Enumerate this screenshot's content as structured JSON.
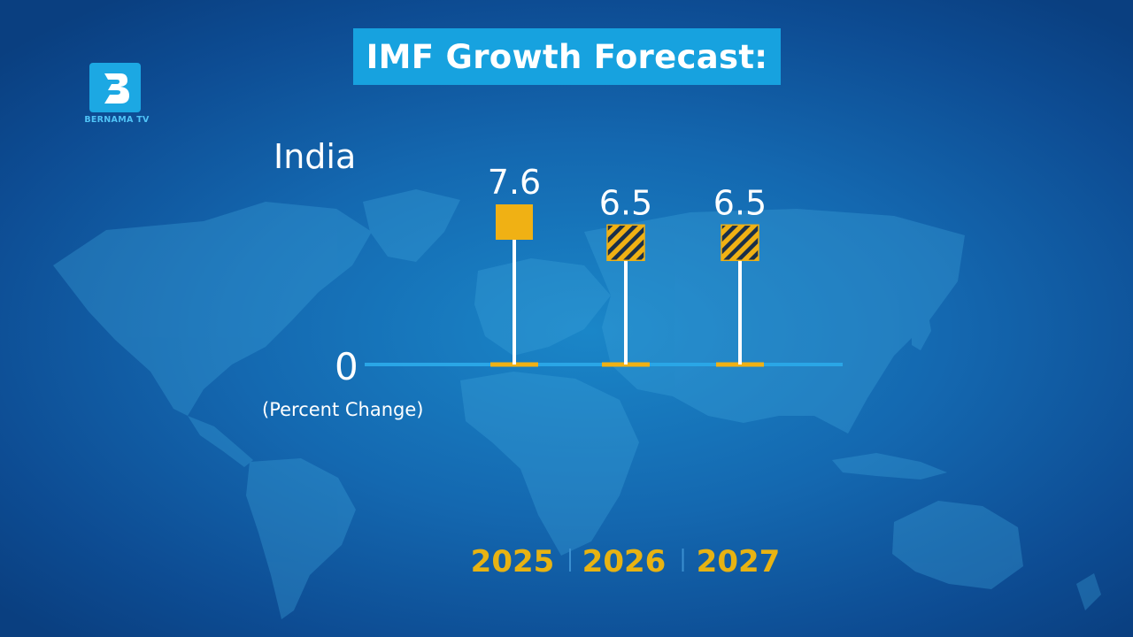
{
  "channel": {
    "logo_text": "BERNAMA TV"
  },
  "header": {
    "title": "IMF Growth Forecast:"
  },
  "chart_data": {
    "type": "bar",
    "title": "IMF Growth Forecast:",
    "country": "India",
    "categories": [
      "2025",
      "2026",
      "2027"
    ],
    "values": [
      7.6,
      6.5,
      6.5
    ],
    "value_labels": [
      "7.6",
      "6.5",
      "6.5"
    ],
    "projected": [
      false,
      true,
      true
    ],
    "baseline_label": "0",
    "ylabel": "(Percent Change)",
    "ylim": [
      0,
      7.6
    ]
  },
  "colors": {
    "background": "#1468b0",
    "title_box": "#17a2df",
    "accent": "#f0b114",
    "baseline": "#2aa6e6",
    "stem": "#ffffff"
  }
}
